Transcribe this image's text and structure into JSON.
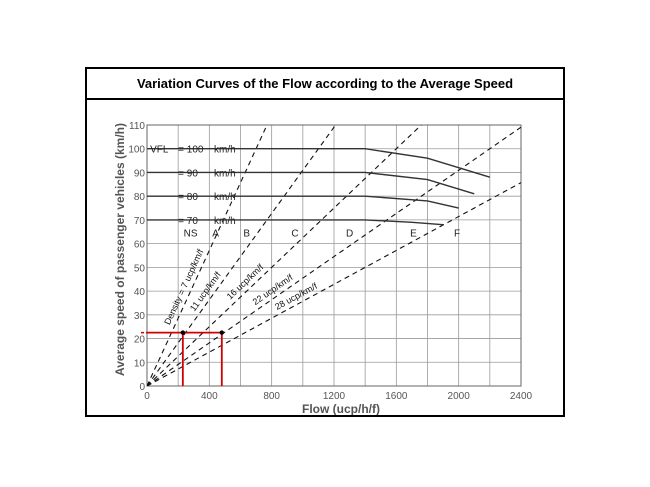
{
  "chart_data": {
    "type": "line",
    "title": "Variation Curves of the Flow according to the Average Speed",
    "xlabel": "Flow (ucp/h/f)",
    "ylabel": "Average speed of passenger vehicles (km/h)",
    "xlim": [
      0,
      2400
    ],
    "ylim": [
      0,
      110
    ],
    "x_ticks": [
      "0",
      "400",
      "800",
      "1200",
      "1600",
      "2000",
      "2400"
    ],
    "y_ticks": [
      "0",
      "10",
      "20",
      "30",
      "40",
      "50",
      "60",
      "70",
      "80",
      "90",
      "100",
      "110"
    ],
    "grid": true,
    "vfl_label": "VFL",
    "speed_unit": "km/h",
    "vfl_curves": [
      {
        "label": "= 100",
        "x": [
          0,
          1400,
          1800,
          2200
        ],
        "y": [
          100,
          100,
          96,
          88
        ]
      },
      {
        "label": "= 90",
        "x": [
          0,
          1400,
          1800,
          2100
        ],
        "y": [
          90,
          90,
          87,
          81
        ]
      },
      {
        "label": "= 80",
        "x": [
          0,
          1400,
          1800,
          2000
        ],
        "y": [
          80,
          80,
          78,
          75
        ]
      },
      {
        "label": "= 70",
        "x": [
          0,
          1400,
          1700,
          1900
        ],
        "y": [
          70,
          70,
          69,
          68
        ]
      }
    ],
    "density_lines": [
      {
        "label": "Density = 7 ucp/km/f",
        "density": 7
      },
      {
        "label": "11 ucp/km/f",
        "density": 11
      },
      {
        "label": "16 ucp/km/f",
        "density": 16
      },
      {
        "label": "22 ucp/km/f",
        "density": 22
      },
      {
        "label": "28 ucp/km/f",
        "density": 28
      }
    ],
    "los_labels": [
      {
        "text": "NS",
        "x": 280,
        "y": 63
      },
      {
        "text": "A",
        "x": 440,
        "y": 63
      },
      {
        "text": "B",
        "x": 640,
        "y": 63
      },
      {
        "text": "C",
        "x": 950,
        "y": 63
      },
      {
        "text": "D",
        "x": 1300,
        "y": 63
      },
      {
        "text": "E",
        "x": 1710,
        "y": 63
      },
      {
        "text": "F",
        "x": 1990,
        "y": 63
      }
    ],
    "example_lines": [
      {
        "x": [
          0,
          480
        ],
        "y": [
          22.5,
          22.5
        ],
        "color": "#d00000"
      },
      {
        "x": [
          230,
          230
        ],
        "y": [
          0,
          22.5
        ],
        "color": "#d00000"
      },
      {
        "x": [
          480,
          480
        ],
        "y": [
          0,
          22.5
        ],
        "color": "#d00000"
      }
    ],
    "example_points": [
      {
        "x": 230,
        "y": 22.5
      },
      {
        "x": 480,
        "y": 22.5
      }
    ],
    "colors": {
      "curve": "#333333",
      "density": "#111111",
      "grid": "#9a9a9a",
      "axis_text": "#555555",
      "highlight": "#d00000"
    }
  }
}
